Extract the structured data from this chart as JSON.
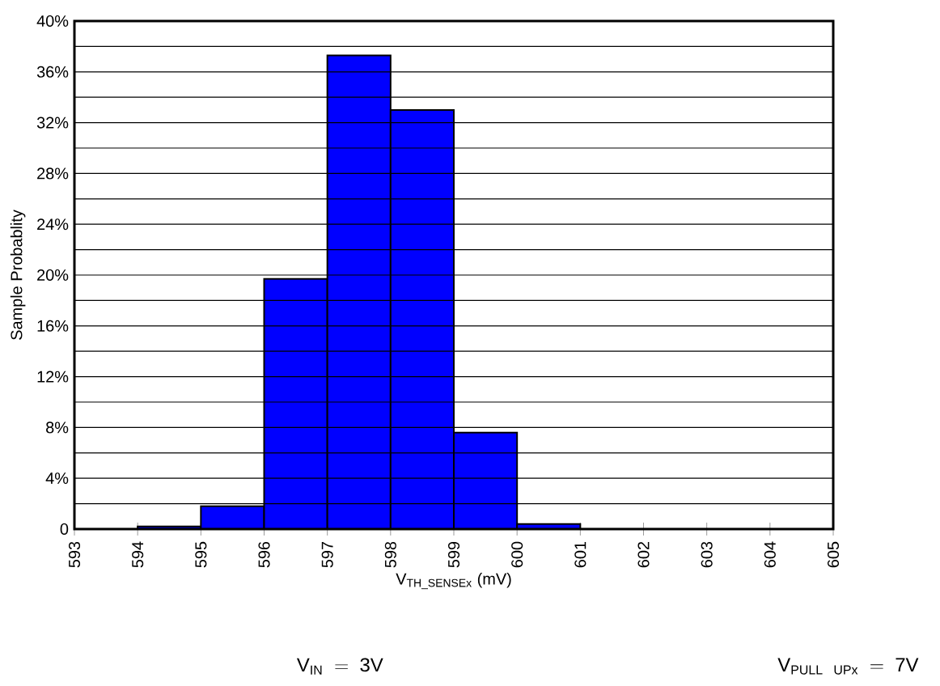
{
  "chart_data": {
    "type": "histogram",
    "bins": [
      594,
      595,
      596,
      597,
      598,
      599,
      600,
      601
    ],
    "values": [
      0.2,
      1.8,
      19.7,
      37.3,
      33.0,
      7.6,
      0.4
    ],
    "color": "#0000ff",
    "xlabel": "V$_{TH_SENSEx}$ (mV)",
    "ylabel": "Sample Probablity",
    "xlim": [
      593,
      605
    ],
    "xticks": [
      593,
      594,
      595,
      596,
      597,
      598,
      599,
      600,
      601,
      602,
      603,
      604,
      605
    ],
    "ylim": [
      0,
      40
    ],
    "yticks": [
      0,
      {
        "value": 2,
        "label": null
      },
      {
        "value": 4,
        "label": "4%"
      },
      {
        "value": 6,
        "label": null
      },
      {
        "value": 8,
        "label": "8%"
      },
      {
        "value": 10,
        "label": null
      },
      {
        "value": 12,
        "label": "12%"
      },
      {
        "value": 14,
        "label": null
      },
      {
        "value": 16,
        "label": "16%"
      },
      {
        "value": 18,
        "label": null
      },
      {
        "value": 20,
        "label": "20%"
      },
      {
        "value": 22,
        "label": null
      },
      {
        "value": 24,
        "label": "24%"
      },
      {
        "value": 26,
        "label": null
      },
      {
        "value": 28,
        "label": "28%"
      },
      {
        "value": 30,
        "label": null
      },
      {
        "value": 32,
        "label": "32%"
      },
      {
        "value": 34,
        "label": null
      },
      {
        "value": 36,
        "label": "36%"
      },
      {
        "value": 38,
        "label": null
      },
      {
        "value": 40,
        "label": "40%"
      }
    ],
    "grid": "y",
    "annotations": [
      "\\mathrm{V_{IN}\\ =\\ 3V}",
      "\\mathrm{V_{PULL\\ \\ UPx}\\ =\\ 7V}"
    ]
  }
}
